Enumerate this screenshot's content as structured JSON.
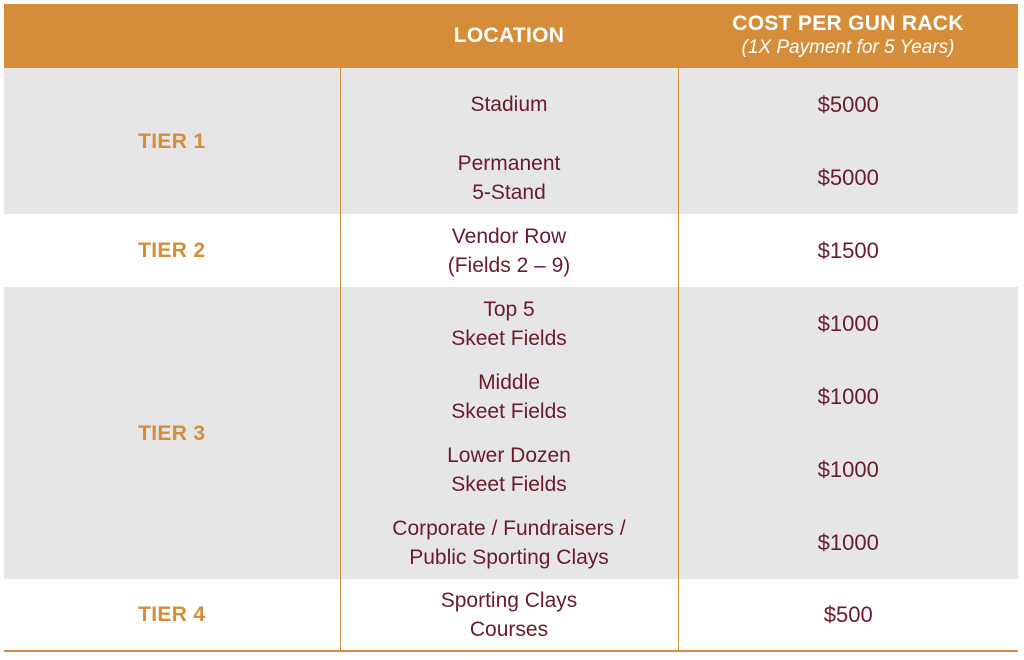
{
  "header": {
    "location": "LOCATION",
    "cost": "COST PER GUN RACK",
    "cost_sub": "(1X Payment for 5 Years)"
  },
  "tiers": [
    {
      "label": "TIER 1"
    },
    {
      "label": "TIER 2"
    },
    {
      "label": "TIER 3"
    },
    {
      "label": "TIER 4"
    }
  ],
  "rows": [
    {
      "loc1": "Stadium",
      "loc2": "",
      "cost": "$5000"
    },
    {
      "loc1": "Permanent",
      "loc2": "5-Stand",
      "cost": "$5000"
    },
    {
      "loc1": "Vendor Row",
      "loc2": "(Fields 2 – 9)",
      "cost": "$1500"
    },
    {
      "loc1": "Top 5",
      "loc2": "Skeet Fields",
      "cost": "$1000"
    },
    {
      "loc1": "Middle",
      "loc2": "Skeet Fields",
      "cost": "$1000"
    },
    {
      "loc1": "Lower Dozen",
      "loc2": "Skeet Fields",
      "cost": "$1000"
    },
    {
      "loc1": "Corporate / Fundraisers /",
      "loc2": "Public Sporting Clays",
      "cost": "$1000"
    },
    {
      "loc1": "Sporting Clays",
      "loc2": "Courses",
      "cost": "$500"
    }
  ],
  "colors": {
    "accent": "#d58d3a",
    "text": "#6b1a2a",
    "shade": "#e6e6e8"
  }
}
